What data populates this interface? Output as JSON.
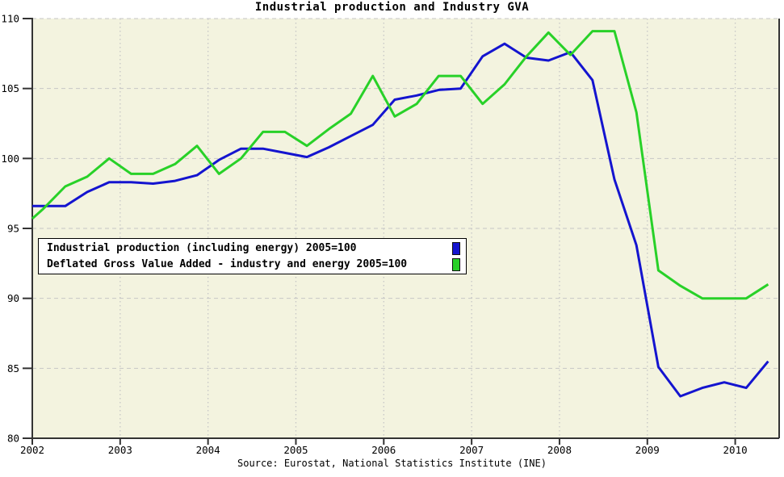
{
  "chart_data": {
    "type": "line",
    "title": "Industrial production and Industry GVA",
    "source": "Source: Eurostat, National Statistics Institute (INE)",
    "xlabel": "",
    "ylabel": "",
    "xlim": [
      2002,
      2010.5
    ],
    "ylim": [
      80,
      110
    ],
    "x_ticks": [
      2002,
      2003,
      2004,
      2005,
      2006,
      2007,
      2008,
      2009,
      2010
    ],
    "y_ticks": [
      80,
      85,
      90,
      95,
      100,
      105,
      110
    ],
    "grid": true,
    "legend_position": "inside-left",
    "plot_background": "#f3f3df",
    "gridline_color": "#c6c6c6",
    "axis_color": "#333333",
    "x": [
      2002.0,
      2002.125,
      2002.375,
      2002.625,
      2002.875,
      2003.125,
      2003.375,
      2003.625,
      2003.875,
      2004.125,
      2004.375,
      2004.625,
      2004.875,
      2005.125,
      2005.375,
      2005.625,
      2005.875,
      2006.125,
      2006.375,
      2006.625,
      2006.875,
      2007.125,
      2007.375,
      2007.625,
      2007.875,
      2008.125,
      2008.375,
      2008.625,
      2008.875,
      2009.125,
      2009.375,
      2009.625,
      2009.875,
      2010.125,
      2010.375
    ],
    "series": [
      {
        "name": "Industrial production (including energy) 2005=100",
        "color": "#1414cf",
        "values": [
          96.6,
          96.6,
          96.6,
          97.6,
          98.3,
          98.3,
          98.2,
          98.4,
          98.8,
          99.9,
          100.7,
          100.7,
          100.4,
          100.1,
          100.8,
          101.6,
          102.4,
          104.2,
          104.5,
          104.9,
          105.0,
          107.3,
          108.2,
          107.2,
          107.0,
          107.6,
          105.6,
          98.5,
          93.8,
          85.1,
          83.0,
          83.6,
          84.0,
          83.6,
          85.5
        ]
      },
      {
        "name": "Deflated Gross Value Added - industry and energy 2005=100",
        "color": "#28d128",
        "values": [
          95.7,
          96.4,
          98.0,
          98.7,
          100.0,
          98.9,
          98.9,
          99.6,
          100.9,
          98.9,
          100.0,
          101.9,
          101.9,
          100.9,
          102.1,
          103.2,
          105.9,
          103.0,
          103.9,
          105.9,
          105.9,
          103.9,
          105.3,
          107.3,
          109.0,
          107.4,
          109.1,
          109.1,
          103.3,
          92.0,
          90.9,
          90.0,
          90.0,
          90.0,
          91.0
        ]
      }
    ]
  }
}
